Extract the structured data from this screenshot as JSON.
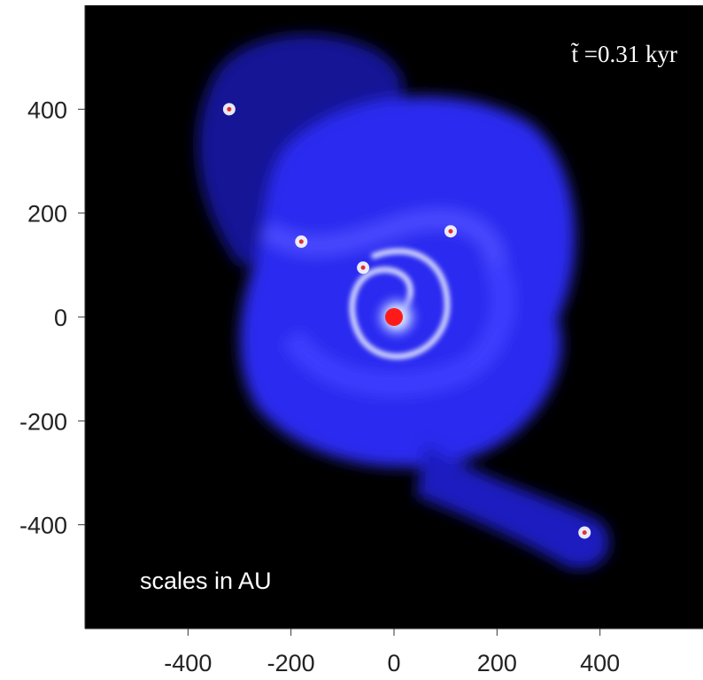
{
  "chart_data": {
    "type": "image",
    "annotations": [
      "t̃ =0.31 kyr",
      "scales in AU"
    ],
    "x": [
      0,
      -60,
      -180,
      110,
      -320,
      370
    ],
    "y": [
      0,
      95,
      145,
      165,
      400,
      -415
    ],
    "xlim": [
      -600,
      600
    ],
    "ylim": [
      -600,
      600
    ],
    "xticks": [
      -400,
      -200,
      0,
      200,
      400
    ],
    "yticks": [
      -400,
      -200,
      0,
      200,
      400
    ]
  }
}
